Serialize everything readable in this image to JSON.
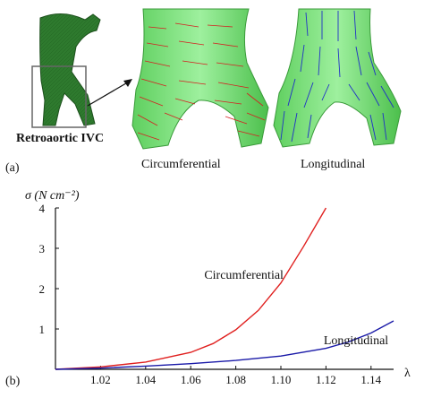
{
  "figure": {
    "panel_a_label": "(a)",
    "panel_b_label": "(b)",
    "retroaortic_caption": "Retroaortic IVC",
    "circumferential_caption": "Circumferential",
    "longitudinal_caption": "Longitudinal"
  },
  "chart_data": {
    "type": "line",
    "ylabel": "σ  (N cm⁻²)",
    "xlabel": "λ",
    "xlim": [
      1.0,
      1.15
    ],
    "ylim": [
      0,
      4
    ],
    "xticks": [
      1.02,
      1.04,
      1.06,
      1.08,
      1.1,
      1.12,
      1.14
    ],
    "yticks": [
      1,
      2,
      3,
      4
    ],
    "series": [
      {
        "name": "Circumferential",
        "color": "#e0201f",
        "x": [
          1.0,
          1.02,
          1.04,
          1.06,
          1.07,
          1.08,
          1.09,
          1.1,
          1.11,
          1.12
        ],
        "y": [
          0.0,
          0.06,
          0.18,
          0.42,
          0.64,
          0.98,
          1.46,
          2.14,
          3.04,
          4.0
        ]
      },
      {
        "name": "Longitudinal",
        "color": "#1a1aa8",
        "x": [
          1.0,
          1.02,
          1.04,
          1.06,
          1.08,
          1.1,
          1.12,
          1.13,
          1.14,
          1.15
        ],
        "y": [
          0.0,
          0.03,
          0.08,
          0.14,
          0.22,
          0.33,
          0.52,
          0.68,
          0.9,
          1.2
        ]
      }
    ]
  }
}
